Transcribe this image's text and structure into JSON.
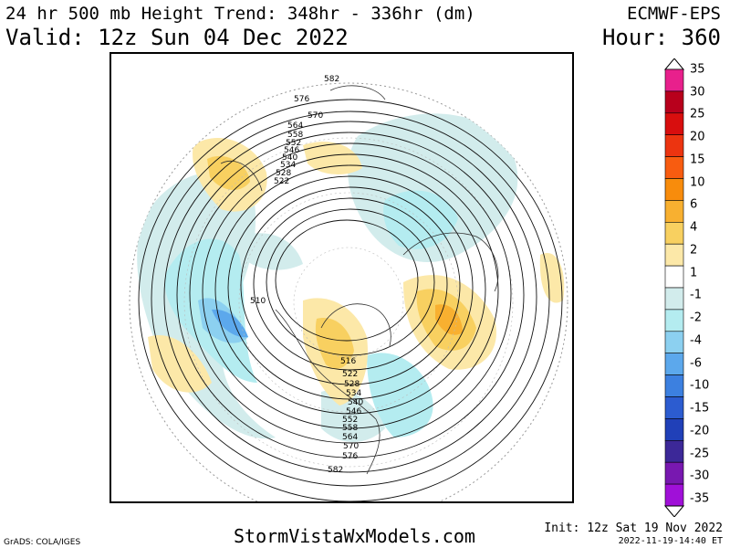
{
  "header": {
    "title": "24 hr 500 mb Height Trend: 348hr - 336hr (dm)",
    "valid": "Valid: 12z Sun 04 Dec 2022",
    "model": "ECMWF-EPS",
    "hour": "Hour: 360"
  },
  "footer": {
    "credit": "GrADS: COLA/IGES",
    "site": "StormVistaWxModels.com",
    "init": "Init: 12z Sat 19 Nov 2022",
    "timestamp": "2022-11-19-14:40 ET"
  },
  "colorbar": {
    "levels": [
      {
        "label": "35",
        "color": "#e8208c"
      },
      {
        "label": "30",
        "color": "#b8001c"
      },
      {
        "label": "25",
        "color": "#d80e0e"
      },
      {
        "label": "20",
        "color": "#ec3410"
      },
      {
        "label": "15",
        "color": "#f85c10"
      },
      {
        "label": "10",
        "color": "#f88c0c"
      },
      {
        "label": "6",
        "color": "#f8b030"
      },
      {
        "label": "4",
        "color": "#f8d060"
      },
      {
        "label": "2",
        "color": "#fce8a8"
      },
      {
        "label": "1",
        "color": "#ffffff"
      },
      {
        "label": "-1",
        "color": "#d2ecec"
      },
      {
        "label": "-2",
        "color": "#b4ecf0"
      },
      {
        "label": "-4",
        "color": "#8cd0f0"
      },
      {
        "label": "-6",
        "color": "#5ca8ec"
      },
      {
        "label": "-10",
        "color": "#3c80e0"
      },
      {
        "label": "-15",
        "color": "#2c5cd0"
      },
      {
        "label": "-20",
        "color": "#2040b8"
      },
      {
        "label": "-25",
        "color": "#3c2898"
      },
      {
        "label": "-30",
        "color": "#7818b0"
      },
      {
        "label": "-35",
        "color": "#a010d8"
      }
    ]
  },
  "map": {
    "contour_labels": [
      "582",
      "576",
      "570",
      "564",
      "558",
      "552",
      "546",
      "540",
      "534",
      "528",
      "522",
      "510",
      "516",
      "522",
      "528",
      "534",
      "540",
      "546",
      "552",
      "558",
      "564",
      "570",
      "576",
      "582"
    ]
  }
}
